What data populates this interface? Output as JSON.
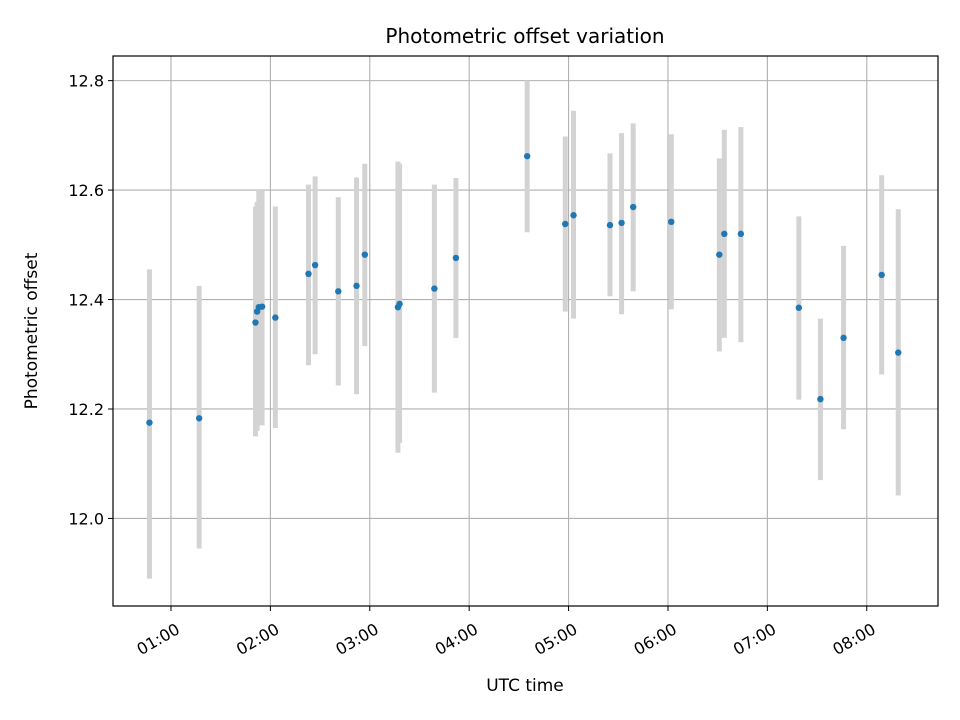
{
  "chart_data": {
    "type": "scatter",
    "title": "Photometric offset variation",
    "xlabel": "UTC time",
    "ylabel": "Photometric offset",
    "xlim": [
      "00:25",
      "08:43"
    ],
    "ylim": [
      11.84,
      12.845
    ],
    "grid": true,
    "x_ticks": [
      "01:00",
      "02:00",
      "03:00",
      "04:00",
      "05:00",
      "06:00",
      "07:00",
      "08:00"
    ],
    "y_ticks": [
      12.0,
      12.2,
      12.4,
      12.6,
      12.8
    ],
    "colors": {
      "point": "#1f77b4",
      "errorbar": "#d3d3d3",
      "grid": "#b0b0b0"
    },
    "points": [
      {
        "x": "00:47",
        "y": 12.175,
        "ylow": 11.89,
        "yhigh": 12.455
      },
      {
        "x": "01:17",
        "y": 12.183,
        "ylow": 11.945,
        "yhigh": 12.425
      },
      {
        "x": "01:51",
        "y": 12.358,
        "ylow": 12.15,
        "yhigh": 12.57
      },
      {
        "x": "01:52",
        "y": 12.378,
        "ylow": 12.16,
        "yhigh": 12.578
      },
      {
        "x": "01:53",
        "y": 12.386,
        "ylow": 12.17,
        "yhigh": 12.6
      },
      {
        "x": "01:55",
        "y": 12.387,
        "ylow": 12.17,
        "yhigh": 12.6
      },
      {
        "x": "02:03",
        "y": 12.367,
        "ylow": 12.165,
        "yhigh": 12.57
      },
      {
        "x": "02:23",
        "y": 12.447,
        "ylow": 12.28,
        "yhigh": 12.61
      },
      {
        "x": "02:27",
        "y": 12.463,
        "ylow": 12.3,
        "yhigh": 12.625
      },
      {
        "x": "02:41",
        "y": 12.415,
        "ylow": 12.243,
        "yhigh": 12.587
      },
      {
        "x": "02:52",
        "y": 12.425,
        "ylow": 12.227,
        "yhigh": 12.623
      },
      {
        "x": "02:57",
        "y": 12.482,
        "ylow": 12.315,
        "yhigh": 12.648
      },
      {
        "x": "03:17",
        "y": 12.386,
        "ylow": 12.12,
        "yhigh": 12.652
      },
      {
        "x": "03:18",
        "y": 12.392,
        "ylow": 12.138,
        "yhigh": 12.648
      },
      {
        "x": "03:39",
        "y": 12.42,
        "ylow": 12.23,
        "yhigh": 12.61
      },
      {
        "x": "03:52",
        "y": 12.476,
        "ylow": 12.33,
        "yhigh": 12.622
      },
      {
        "x": "04:35",
        "y": 12.662,
        "ylow": 12.523,
        "yhigh": 12.8
      },
      {
        "x": "04:58",
        "y": 12.538,
        "ylow": 12.378,
        "yhigh": 12.698
      },
      {
        "x": "05:03",
        "y": 12.554,
        "ylow": 12.365,
        "yhigh": 12.745
      },
      {
        "x": "05:25",
        "y": 12.536,
        "ylow": 12.406,
        "yhigh": 12.667
      },
      {
        "x": "05:32",
        "y": 12.54,
        "ylow": 12.373,
        "yhigh": 12.704
      },
      {
        "x": "05:39",
        "y": 12.569,
        "ylow": 12.415,
        "yhigh": 12.722
      },
      {
        "x": "06:02",
        "y": 12.542,
        "ylow": 12.382,
        "yhigh": 12.702
      },
      {
        "x": "06:31",
        "y": 12.482,
        "ylow": 12.305,
        "yhigh": 12.658
      },
      {
        "x": "06:34",
        "y": 12.52,
        "ylow": 12.33,
        "yhigh": 12.71
      },
      {
        "x": "06:44",
        "y": 12.52,
        "ylow": 12.322,
        "yhigh": 12.715
      },
      {
        "x": "07:19",
        "y": 12.385,
        "ylow": 12.217,
        "yhigh": 12.552
      },
      {
        "x": "07:32",
        "y": 12.218,
        "ylow": 12.07,
        "yhigh": 12.365
      },
      {
        "x": "07:46",
        "y": 12.33,
        "ylow": 12.163,
        "yhigh": 12.498
      },
      {
        "x": "08:09",
        "y": 12.445,
        "ylow": 12.263,
        "yhigh": 12.627
      },
      {
        "x": "08:19",
        "y": 12.303,
        "ylow": 12.042,
        "yhigh": 12.565
      }
    ]
  }
}
